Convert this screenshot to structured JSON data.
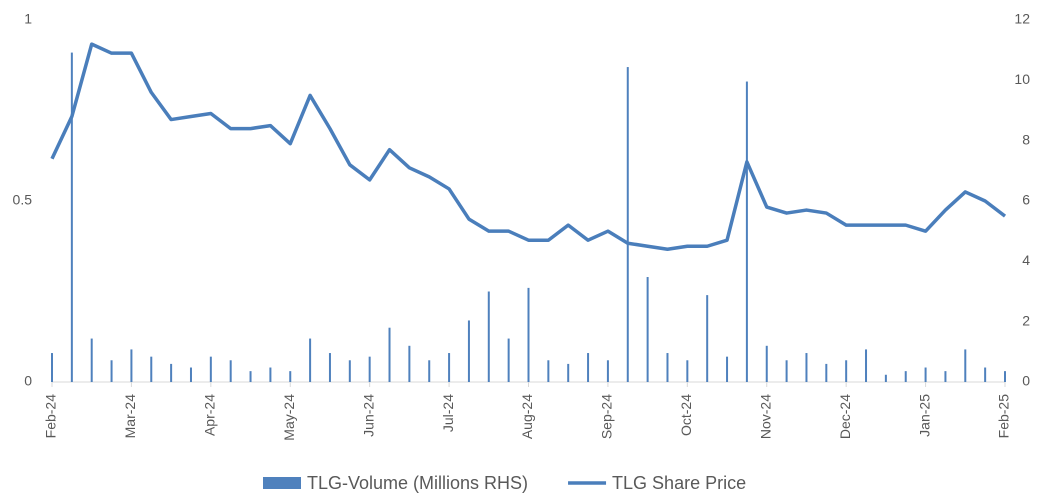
{
  "chart_data": {
    "type": "bar_line",
    "categories": [
      "Feb-24",
      null,
      null,
      null,
      "Mar-24",
      null,
      null,
      null,
      "Apr-24",
      null,
      null,
      null,
      "May-24",
      null,
      null,
      null,
      "Jun-24",
      null,
      null,
      null,
      "Jul-24",
      null,
      null,
      null,
      "Aug-24",
      null,
      null,
      null,
      "Sep-24",
      null,
      null,
      null,
      "Oct-24",
      null,
      null,
      null,
      "Nov-24",
      null,
      null,
      null,
      "Dec-24",
      null,
      null,
      null,
      "Jan-25",
      null,
      null,
      null,
      "Feb-25"
    ],
    "series": [
      {
        "name": "TLG-Volume (Millions RHS)",
        "color": "#4f81bd",
        "kind": "bar",
        "axis": "y",
        "values": [
          0.08,
          0.91,
          0.12,
          0.06,
          0.09,
          0.07,
          0.05,
          0.04,
          0.07,
          0.06,
          0.03,
          0.04,
          0.03,
          0.12,
          0.08,
          0.06,
          0.07,
          0.15,
          0.1,
          0.06,
          0.08,
          0.17,
          0.25,
          0.12,
          0.26,
          0.06,
          0.05,
          0.08,
          0.06,
          0.87,
          0.29,
          0.08,
          0.06,
          0.24,
          0.07,
          0.83,
          0.1,
          0.06,
          0.08,
          0.05,
          0.06,
          0.09,
          0.02,
          0.03,
          0.04,
          0.03,
          0.09,
          0.04,
          0.03
        ]
      },
      {
        "name": "TLG Share Price",
        "color": "#4a7ebb",
        "kind": "line",
        "axis": "y2",
        "values": [
          7.4,
          8.8,
          11.2,
          10.9,
          10.9,
          9.6,
          8.7,
          8.8,
          8.9,
          8.4,
          8.4,
          8.5,
          7.9,
          9.5,
          8.4,
          7.2,
          6.7,
          7.7,
          7.1,
          6.8,
          6.4,
          5.4,
          5.0,
          5.0,
          4.7,
          4.7,
          5.2,
          4.7,
          5.0,
          4.6,
          4.5,
          4.4,
          4.5,
          4.5,
          4.7,
          7.3,
          5.8,
          5.6,
          5.7,
          5.6,
          5.2,
          5.2,
          5.2,
          5.2,
          5.0,
          5.7,
          6.3,
          6.0,
          5.5
        ]
      }
    ],
    "ylim": [
      0,
      1
    ],
    "yticks": [
      0,
      0.5,
      1
    ],
    "y2lim": [
      0,
      12
    ],
    "y2ticks": [
      0,
      2,
      4,
      6,
      8,
      10,
      12
    ],
    "legend": "bottom"
  }
}
